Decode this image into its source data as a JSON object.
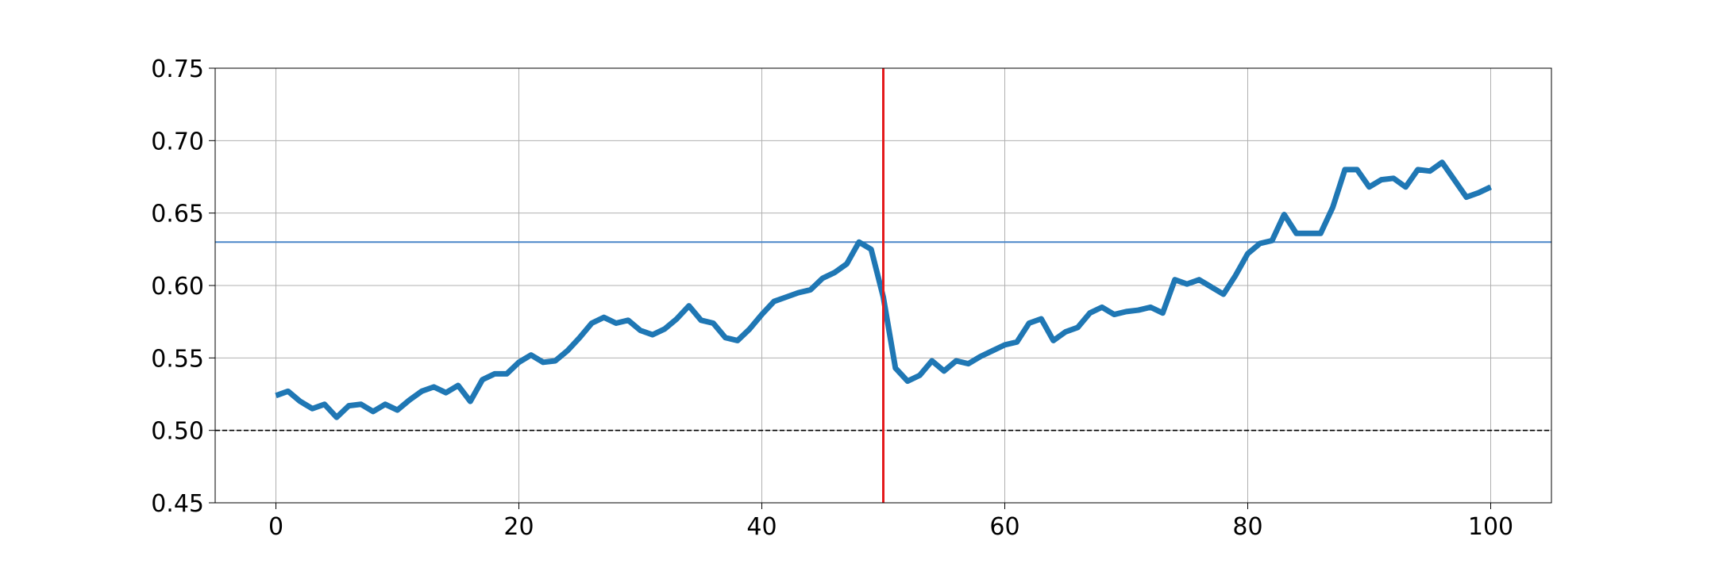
{
  "chart_data": {
    "type": "line",
    "x": [
      0,
      1,
      2,
      3,
      4,
      5,
      6,
      7,
      8,
      9,
      10,
      11,
      12,
      13,
      14,
      15,
      16,
      17,
      18,
      19,
      20,
      21,
      22,
      23,
      24,
      25,
      26,
      27,
      28,
      29,
      30,
      31,
      32,
      33,
      34,
      35,
      36,
      37,
      38,
      39,
      40,
      41,
      42,
      43,
      44,
      45,
      46,
      47,
      48,
      49,
      50,
      51,
      52,
      53,
      54,
      55,
      56,
      57,
      58,
      59,
      60,
      61,
      62,
      63,
      64,
      65,
      66,
      67,
      68,
      69,
      70,
      71,
      72,
      73,
      74,
      75,
      76,
      77,
      78,
      79,
      80,
      81,
      82,
      83,
      84,
      85,
      86,
      87,
      88,
      89,
      90,
      91,
      92,
      93,
      94,
      95,
      96,
      97,
      98,
      99,
      100
    ],
    "series": [
      {
        "color": "#1f77b4",
        "values": [
          0.524,
          0.527,
          0.52,
          0.515,
          0.518,
          0.509,
          0.517,
          0.518,
          0.513,
          0.518,
          0.514,
          0.521,
          0.527,
          0.53,
          0.526,
          0.531,
          0.52,
          0.535,
          0.539,
          0.539,
          0.547,
          0.552,
          0.547,
          0.548,
          0.555,
          0.564,
          0.574,
          0.578,
          0.574,
          0.576,
          0.569,
          0.566,
          0.57,
          0.577,
          0.586,
          0.576,
          0.574,
          0.564,
          0.562,
          0.57,
          0.58,
          0.589,
          0.592,
          0.595,
          0.597,
          0.605,
          0.609,
          0.615,
          0.63,
          0.625,
          0.592,
          0.543,
          0.534,
          0.538,
          0.548,
          0.541,
          0.548,
          0.546,
          0.551,
          0.555,
          0.559,
          0.561,
          0.574,
          0.577,
          0.562,
          0.568,
          0.571,
          0.581,
          0.585,
          0.58,
          0.582,
          0.583,
          0.585,
          0.581,
          0.604,
          0.601,
          0.604,
          0.599,
          0.594,
          0.607,
          0.622,
          0.629,
          0.631,
          0.649,
          0.636,
          0.636,
          0.636,
          0.654,
          0.68,
          0.68,
          0.668,
          0.673,
          0.674,
          0.668,
          0.68,
          0.679,
          0.685,
          0.673,
          0.661,
          0.664,
          0.668
        ]
      }
    ],
    "hlines": [
      {
        "value": 0.63,
        "color": "#4a86c8",
        "style": "solid"
      },
      {
        "value": 0.5,
        "color": "#000000",
        "style": "dashed"
      }
    ],
    "vlines": [
      {
        "value": 50,
        "color": "#e41a1c",
        "style": "solid"
      }
    ],
    "xlim": [
      -5,
      105
    ],
    "ylim": [
      0.45,
      0.75
    ],
    "xticks": [
      0,
      20,
      40,
      60,
      80,
      100
    ],
    "yticks": [
      0.45,
      {
        "value": 0.5,
        "label": "0.50"
      },
      0.55,
      {
        "value": 0.6,
        "label": "0.60"
      },
      0.65,
      {
        "value": 0.7,
        "label": "0.70"
      },
      0.75
    ],
    "grid": true
  }
}
